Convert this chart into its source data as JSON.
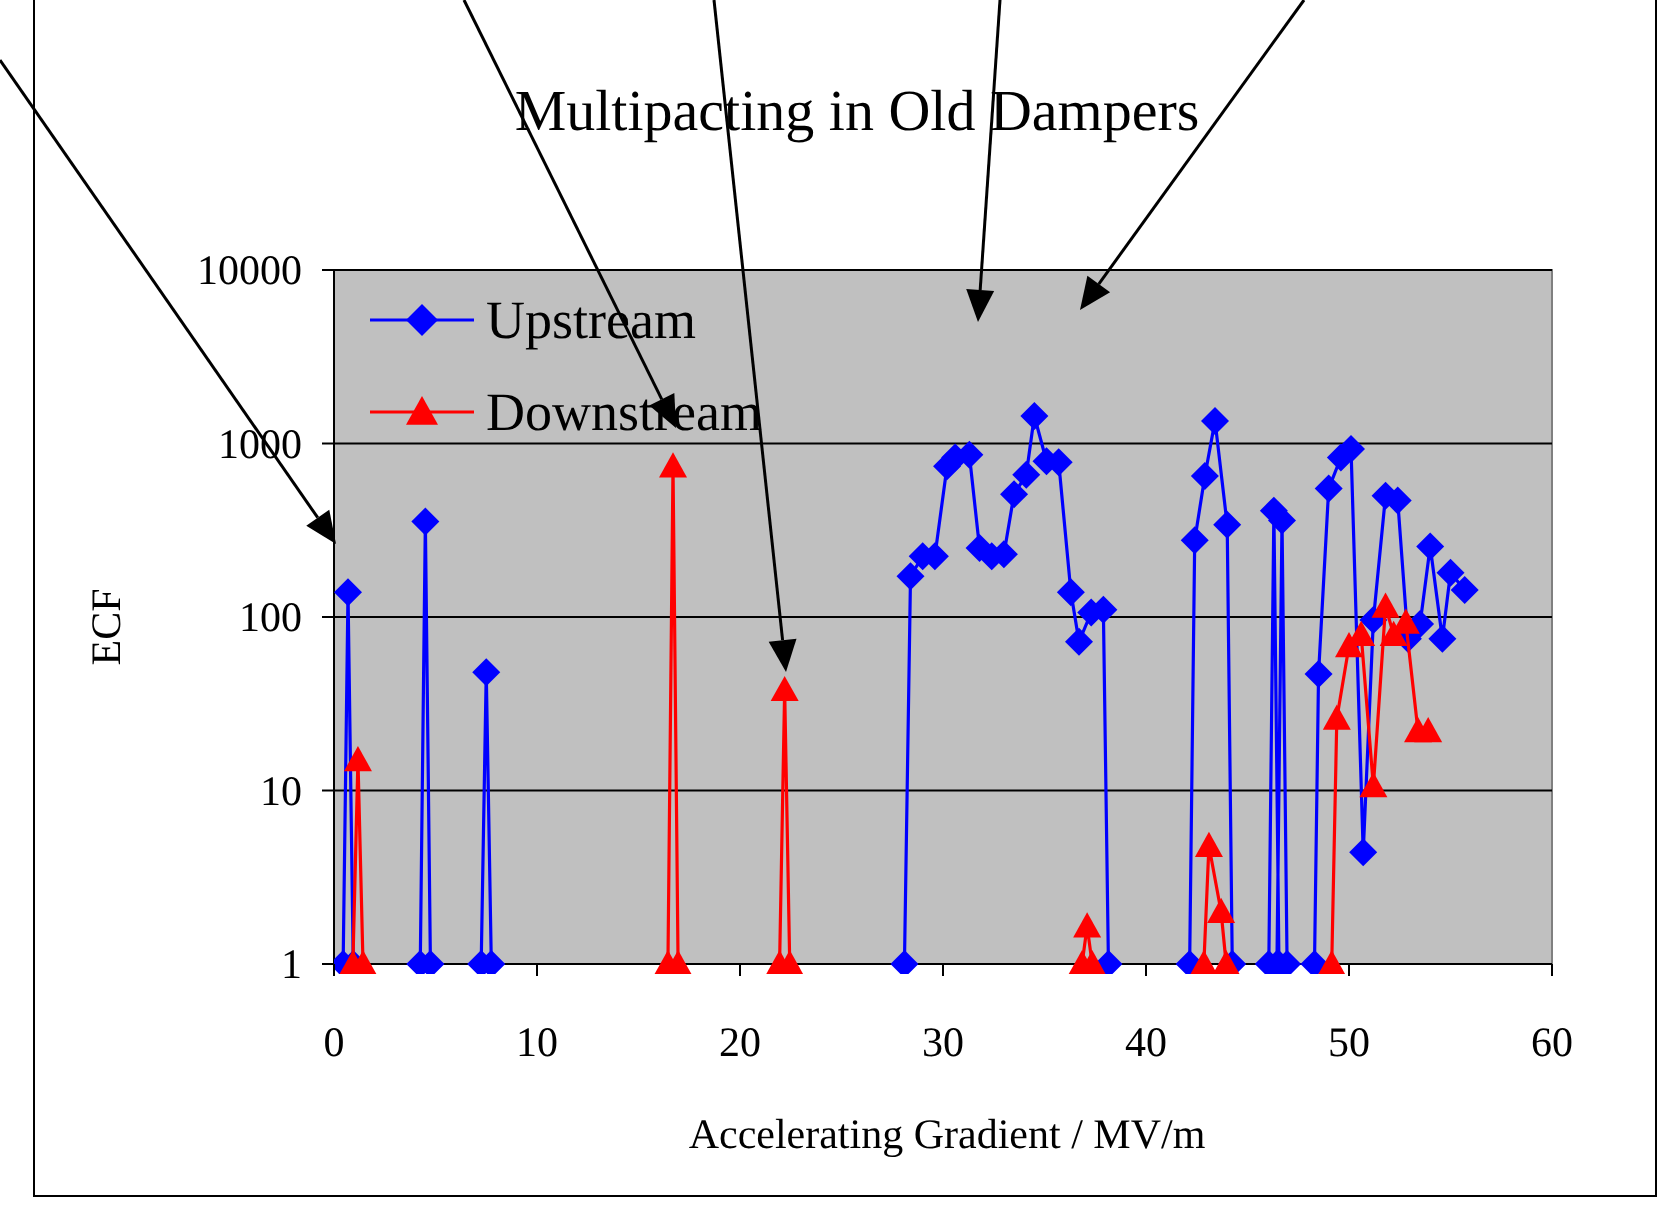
{
  "chart_data": {
    "type": "line",
    "title": "Multipacting in Old Dampers",
    "xlabel": "Accelerating Gradient / MV/m",
    "ylabel": "ECF",
    "log": "y",
    "xlim": [
      0,
      60
    ],
    "xticks": [
      0,
      10,
      20,
      30,
      40,
      50,
      60
    ],
    "ylim": [
      1,
      10000
    ],
    "yticks": [
      1,
      10,
      100,
      1000,
      10000
    ],
    "grid": "y",
    "legend": "top left",
    "series": [
      {
        "name": "Upstream",
        "color": "#0000ff",
        "marker": "diamond",
        "x": [
          0.45,
          0.69,
          0.95,
          null,
          4.25,
          4.5,
          4.75,
          null,
          7.25,
          7.5,
          7.75,
          null,
          28.1,
          28.4,
          29.0,
          29.6,
          30.2,
          30.6,
          31.3,
          31.8,
          32.4,
          33.0,
          33.5,
          34.1,
          34.5,
          35.1,
          35.7,
          36.3,
          36.7,
          37.3,
          37.9,
          38.15,
          null,
          42.15,
          42.4,
          42.9,
          43.4,
          44.0,
          44.25,
          null,
          46.05,
          46.3,
          46.55,
          null,
          46.45,
          46.7,
          46.95,
          null,
          48.3,
          48.5,
          49.0,
          49.6,
          50.1,
          50.7,
          51.2,
          51.8,
          52.4,
          52.9,
          53.5,
          54.0,
          54.6,
          55.0,
          55.7
        ],
        "values": [
          1,
          139,
          1,
          null,
          1,
          355,
          1,
          null,
          1,
          48,
          1,
          null,
          1,
          172,
          224,
          224,
          740,
          830,
          860,
          250,
          224,
          230,
          510,
          660,
          1440,
          790,
          780,
          139,
          72,
          106,
          110,
          1,
          null,
          1,
          277,
          650,
          1350,
          340,
          1,
          null,
          1,
          410,
          1,
          null,
          1,
          360,
          1,
          null,
          1,
          47,
          550,
          830,
          930,
          4.4,
          96,
          500,
          470,
          75,
          91,
          255,
          75,
          180,
          143
        ]
      },
      {
        "name": "Downstream",
        "color": "#ff0000",
        "marker": "triangle",
        "x": [
          0.93,
          1.18,
          1.43,
          null,
          16.45,
          16.7,
          16.95,
          null,
          21.95,
          22.2,
          22.45,
          null,
          36.85,
          37.1,
          37.35,
          null,
          42.85,
          43.1,
          43.7,
          43.95,
          null,
          49.15,
          49.4,
          50.0,
          50.6,
          51.2,
          51.8,
          52.2,
          52.8,
          53.4,
          53.9
        ],
        "values": [
          1,
          15,
          1,
          null,
          1,
          740,
          1,
          null,
          1,
          38,
          1,
          null,
          1,
          1.65,
          1,
          null,
          1,
          4.8,
          2.0,
          1,
          null,
          1,
          26,
          68,
          79,
          10.6,
          115,
          79,
          93,
          22,
          22
        ]
      }
    ]
  }
}
